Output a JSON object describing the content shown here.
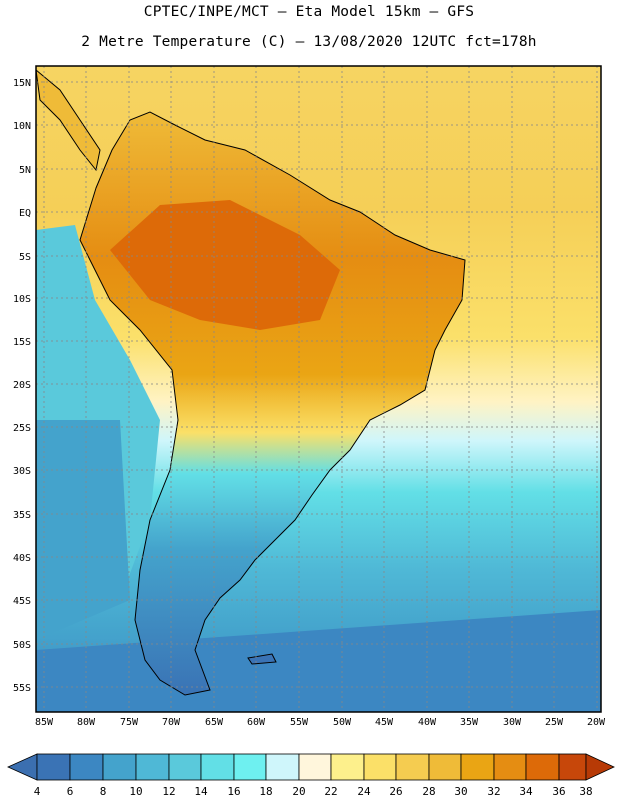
{
  "header": {
    "line1": "CPTEC/INPE/MCT –  Eta Model 15km – GFS",
    "line2": "2 Metre Temperature (C) – 13/08/2020 12UTC fct=178h"
  },
  "map": {
    "lat_labels": [
      "15N",
      "10N",
      "5N",
      "EQ",
      "5S",
      "10S",
      "15S",
      "20S",
      "25S",
      "30S",
      "35S",
      "40S",
      "45S",
      "50S",
      "55S"
    ],
    "lon_labels": [
      "85W",
      "80W",
      "75W",
      "70W",
      "65W",
      "60W",
      "55W",
      "50W",
      "45W",
      "40W",
      "35W",
      "30W",
      "25W",
      "20W"
    ]
  },
  "colorbar": {
    "labels": [
      "4",
      "6",
      "8",
      "10",
      "12",
      "14",
      "16",
      "18",
      "20",
      "22",
      "24",
      "26",
      "28",
      "30",
      "32",
      "34",
      "36",
      "38"
    ],
    "colors": [
      "#3a73b5",
      "#3c87c2",
      "#44a3cc",
      "#4fb8d6",
      "#5ac9db",
      "#62dfe6",
      "#6ef0f0",
      "#cff6fb",
      "#fff6dc",
      "#fdf08c",
      "#fbe068",
      "#f5cc50",
      "#efbb38",
      "#eaa514",
      "#e58d12",
      "#dd6a08",
      "#c7470a",
      "#aa2f06"
    ],
    "min_color": "#3b6fb0",
    "max_color": "#b73a06"
  }
}
